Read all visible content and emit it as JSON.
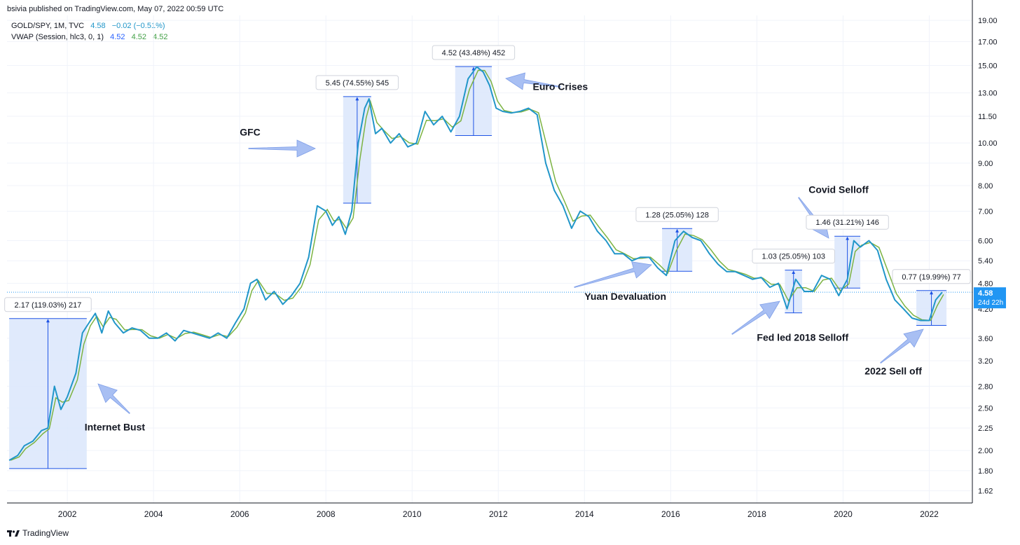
{
  "header": {
    "published": "bsivia published on TradingView.com, May 07, 2022 00:59 UTC",
    "symbol_line": "GOLD/SPY, 1M, TVC",
    "symbol_value": "4.58",
    "symbol_change": "−0.02 (−0.51%)",
    "indicator_line": "VWAP (Session, hlc3, 0, 1)",
    "indicator_v1": "4.52",
    "indicator_v2": "4.52",
    "indicator_v3": "4.52"
  },
  "footer": {
    "brand": "TradingView"
  },
  "price_badge": {
    "value": "4.58",
    "countdown": "24d 22h"
  },
  "colors": {
    "line_main": "#2196c9",
    "line_vwap": "#7cb342",
    "box_fill": "#dbe6fb",
    "box_stroke": "#1e53e5",
    "arrow_fill": "#9fb8f2",
    "badge": "#2196f3",
    "grid": "#f0f3fa"
  },
  "chart_data": {
    "type": "line",
    "log_scale": true,
    "grid": true,
    "y_ticks": [
      1.62,
      1.8,
      2.0,
      2.25,
      2.5,
      2.8,
      3.2,
      3.6,
      4.2,
      4.8,
      5.4,
      6.0,
      7.0,
      8.0,
      9.0,
      10.0,
      11.5,
      13.0,
      15.0,
      17.0,
      19.0
    ],
    "y_tick_labels": [
      "1.62",
      "1.80",
      "2.00",
      "2.25",
      "2.50",
      "2.80",
      "3.20",
      "3.60",
      "4.20",
      "4.80",
      "5.40",
      "6.00",
      "7.00",
      "8.00",
      "9.00",
      "10.00",
      "11.50",
      "13.00",
      "15.00",
      "17.00",
      "19.00"
    ],
    "x_tick_labels": [
      "2002",
      "2004",
      "2006",
      "2008",
      "2010",
      "2012",
      "2014",
      "2016",
      "2018",
      "2020",
      "2022"
    ],
    "x_ticks": [
      2002,
      2004,
      2006,
      2008,
      2010,
      2012,
      2014,
      2016,
      2018,
      2020,
      2022
    ],
    "xlim": [
      2000.6,
      2023.0
    ],
    "ylim": [
      1.5,
      20.0
    ],
    "current_price": 4.58,
    "series": [
      {
        "name": "GOLD/SPY",
        "x": [
          2000.65,
          2000.85,
          2001.0,
          2001.2,
          2001.4,
          2001.55,
          2001.7,
          2001.85,
          2002.0,
          2002.2,
          2002.35,
          2002.5,
          2002.65,
          2002.8,
          2002.95,
          2003.1,
          2003.3,
          2003.5,
          2003.7,
          2003.9,
          2004.1,
          2004.3,
          2004.5,
          2004.7,
          2004.9,
          2005.1,
          2005.3,
          2005.5,
          2005.7,
          2005.9,
          2006.1,
          2006.25,
          2006.4,
          2006.6,
          2006.8,
          2007.0,
          2007.2,
          2007.4,
          2007.6,
          2007.8,
          2008.0,
          2008.15,
          2008.3,
          2008.45,
          2008.6,
          2008.75,
          2008.9,
          2009.0,
          2009.15,
          2009.3,
          2009.5,
          2009.7,
          2009.9,
          2010.1,
          2010.3,
          2010.5,
          2010.7,
          2010.9,
          2011.1,
          2011.3,
          2011.5,
          2011.65,
          2011.8,
          2011.95,
          2012.1,
          2012.3,
          2012.5,
          2012.7,
          2012.9,
          2013.1,
          2013.3,
          2013.5,
          2013.7,
          2013.9,
          2014.1,
          2014.3,
          2014.5,
          2014.7,
          2014.9,
          2015.1,
          2015.3,
          2015.5,
          2015.7,
          2015.9,
          2016.1,
          2016.3,
          2016.5,
          2016.7,
          2016.9,
          2017.1,
          2017.3,
          2017.5,
          2017.7,
          2017.9,
          2018.1,
          2018.3,
          2018.5,
          2018.7,
          2018.9,
          2019.1,
          2019.3,
          2019.5,
          2019.7,
          2019.9,
          2020.1,
          2020.25,
          2020.4,
          2020.6,
          2020.8,
          2021.0,
          2021.2,
          2021.4,
          2021.6,
          2021.8,
          2022.0,
          2022.15,
          2022.3
        ],
        "values": [
          1.9,
          1.95,
          2.05,
          2.1,
          2.22,
          2.25,
          2.8,
          2.48,
          2.65,
          3.0,
          3.7,
          3.9,
          4.1,
          3.7,
          4.15,
          3.9,
          3.7,
          3.8,
          3.75,
          3.6,
          3.6,
          3.7,
          3.55,
          3.75,
          3.7,
          3.65,
          3.6,
          3.7,
          3.6,
          3.9,
          4.2,
          4.8,
          4.9,
          4.4,
          4.6,
          4.3,
          4.5,
          4.8,
          5.5,
          7.2,
          7.0,
          6.5,
          6.8,
          6.2,
          7.0,
          10.0,
          12.0,
          12.6,
          10.5,
          10.8,
          10.0,
          10.5,
          9.8,
          10.0,
          11.8,
          11.0,
          11.5,
          10.6,
          11.5,
          14.0,
          14.9,
          14.5,
          13.5,
          12.0,
          11.8,
          11.7,
          11.8,
          12.0,
          11.6,
          9.0,
          7.8,
          7.2,
          6.4,
          7.0,
          6.8,
          6.3,
          6.0,
          5.6,
          5.6,
          5.4,
          5.5,
          5.5,
          5.2,
          5.0,
          6.0,
          6.3,
          6.1,
          6.0,
          5.6,
          5.3,
          5.1,
          5.1,
          5.0,
          4.9,
          4.95,
          4.7,
          4.8,
          4.2,
          4.9,
          4.6,
          4.6,
          5.0,
          4.9,
          4.5,
          4.9,
          6.0,
          5.8,
          6.0,
          5.7,
          4.9,
          4.4,
          4.2,
          4.0,
          3.95,
          3.95,
          4.4,
          4.58
        ]
      }
    ],
    "measurements": [
      {
        "label": "2.17 (119.03%) 217",
        "x0": 2000.65,
        "x1": 2002.45,
        "low": 1.82,
        "high": 3.99
      },
      {
        "label": "5.45 (74.55%) 545",
        "x0": 2008.4,
        "x1": 2009.05,
        "low": 7.3,
        "high": 12.75
      },
      {
        "label": "4.52 (43.48%) 452",
        "x0": 2011.0,
        "x1": 2011.85,
        "low": 10.4,
        "high": 14.92
      },
      {
        "label": "1.28 (25.05%) 128",
        "x0": 2015.8,
        "x1": 2016.5,
        "low": 5.11,
        "high": 6.39
      },
      {
        "label": "1.03 (25.05%) 103",
        "x0": 2018.65,
        "x1": 2019.05,
        "low": 4.11,
        "high": 5.14
      },
      {
        "label": "1.46 (31.21%) 146",
        "x0": 2019.8,
        "x1": 2020.4,
        "low": 4.68,
        "high": 6.14
      },
      {
        "label": "0.77 (19.99%) 77",
        "x0": 2021.7,
        "x1": 2022.4,
        "low": 3.85,
        "high": 4.62
      }
    ],
    "annotations": [
      {
        "text": "Internet Bust",
        "x": 2002.4,
        "y": 2.22
      },
      {
        "text": "GFC",
        "x": 2006.0,
        "y": 10.4
      },
      {
        "text": "Euro Crises",
        "x": 2012.8,
        "y": 13.2
      },
      {
        "text": "Yuan Devaluation",
        "x": 2014.0,
        "y": 4.4
      },
      {
        "text": "Covid Selloff",
        "x": 2019.2,
        "y": 7.7
      },
      {
        "text": "Fed led 2018 Selloff",
        "x": 2018.0,
        "y": 3.55
      },
      {
        "text": "2022 Sell off",
        "x": 2020.5,
        "y": 2.98
      }
    ]
  }
}
